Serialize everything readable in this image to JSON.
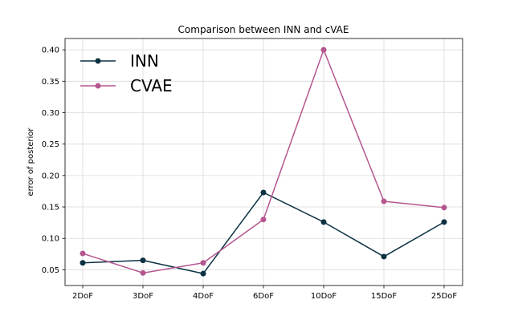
{
  "chart_data": {
    "type": "line",
    "title": "Comparison between INN and cVAE",
    "xlabel": "",
    "ylabel": "error of posterior",
    "categories": [
      "2DoF",
      "3DoF",
      "4DoF",
      "6DoF",
      "10DoF",
      "15DoF",
      "25DoF"
    ],
    "series": [
      {
        "name": "INN",
        "color": "#0b3142",
        "values": [
          0.061,
          0.065,
          0.044,
          0.173,
          0.126,
          0.071,
          0.126
        ]
      },
      {
        "name": "CVAE",
        "color": "#b5568f",
        "values": [
          0.076,
          0.045,
          0.061,
          0.13,
          0.4,
          0.159,
          0.149
        ]
      }
    ],
    "ylim": [
      0.025,
      0.418
    ],
    "yticks": [
      0.05,
      0.1,
      0.15,
      0.2,
      0.25,
      0.3,
      0.35,
      0.4
    ],
    "ytick_labels": [
      "0.05",
      "0.10",
      "0.15",
      "0.20",
      "0.25",
      "0.30",
      "0.35",
      "0.40"
    ],
    "grid": true,
    "legend_position": "top-left"
  }
}
